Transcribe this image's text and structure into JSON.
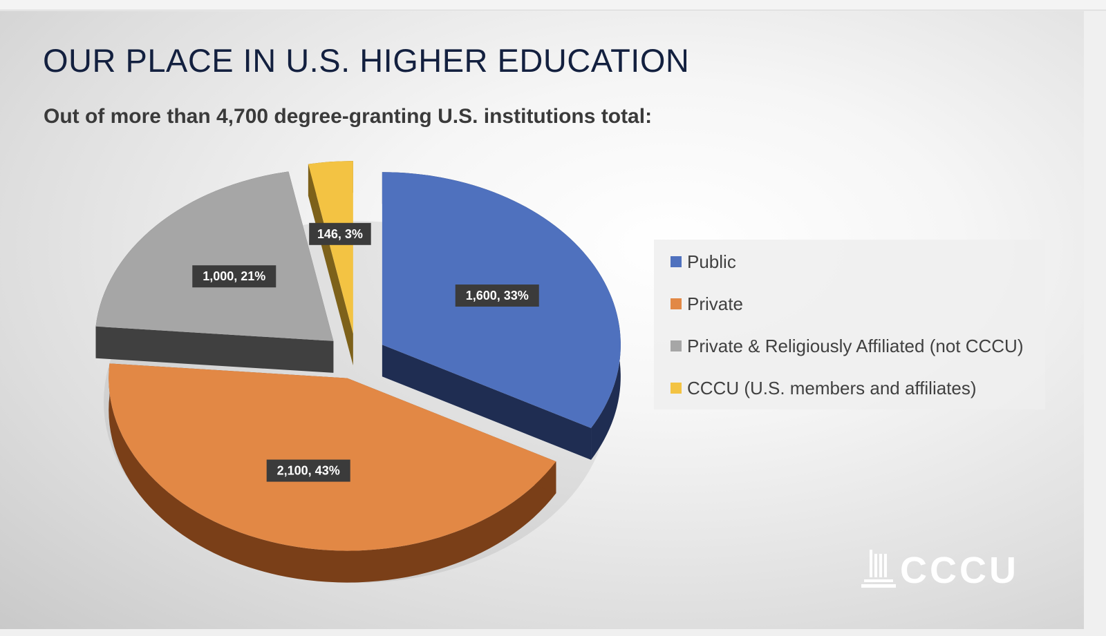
{
  "slide": {
    "title": "OUR PLACE IN U.S. HIGHER EDUCATION",
    "subtitle": "Out of more than 4,700 degree-granting U.S. institutions total:"
  },
  "chart_data": {
    "type": "pie",
    "style": "3d-exploded",
    "legend_position": "right",
    "slices": [
      {
        "name": "Public",
        "value": 1600,
        "percent": 33,
        "label": "1,600, 33%",
        "color": "#4f71be",
        "side_color": "#1f2d52"
      },
      {
        "name": "Private",
        "value": 2100,
        "percent": 43,
        "label": "2,100, 43%",
        "color": "#e28845",
        "side_color": "#7a3f18"
      },
      {
        "name": "Private & Religiously Affiliated (not CCCU)",
        "value": 1000,
        "percent": 21,
        "label": "1,000, 21%",
        "color": "#a6a6a6",
        "side_color": "#404040"
      },
      {
        "name": "CCCU (U.S. members and affiliates)",
        "value": 146,
        "percent": 3,
        "label": "146, 3%",
        "color": "#f3c343",
        "side_color": "#7d611a"
      }
    ]
  },
  "logo": {
    "text": "CCCU"
  }
}
